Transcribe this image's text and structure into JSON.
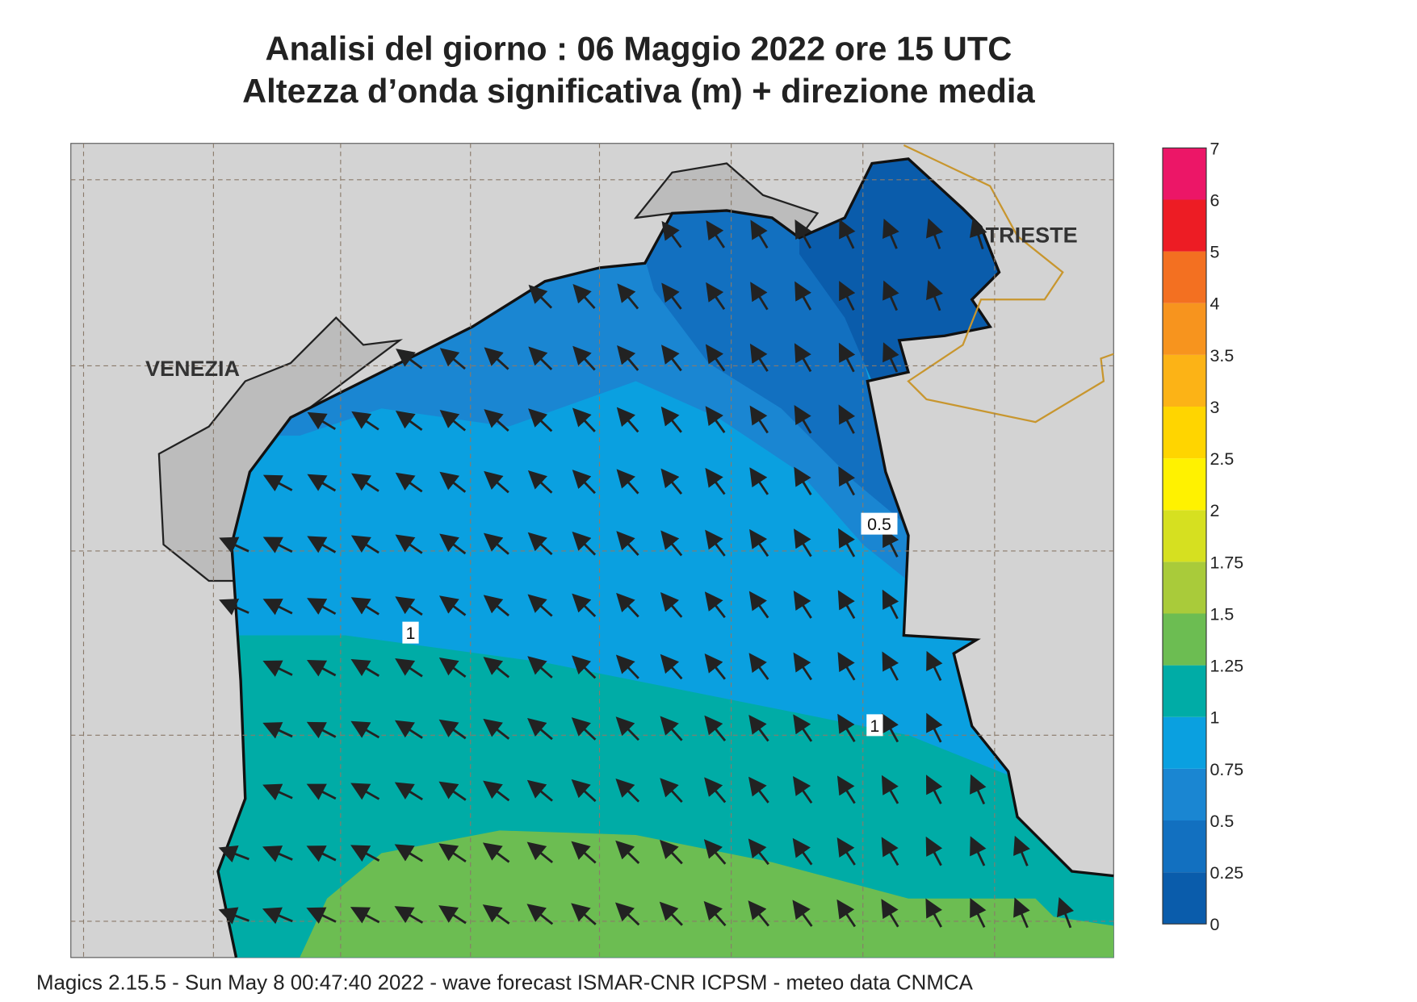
{
  "title": {
    "line1": "Analisi del giorno :  06   Maggio  2022   ore 15 UTC",
    "line2": "Altezza d’onda significativa (m) + direzione media"
  },
  "places": [
    "VENEZIA",
    "TRIESTE"
  ],
  "contour_labels": [
    "0.5",
    "1",
    "1"
  ],
  "colorbar": {
    "levels": [
      0,
      0.25,
      0.5,
      0.75,
      1,
      1.25,
      1.5,
      1.75,
      2,
      2.5,
      3,
      3.5,
      4,
      5,
      6,
      7
    ],
    "colors": [
      "#0a5cab",
      "#1270c0",
      "#1a86d2",
      "#0aa0e0",
      "#00aca6",
      "#6cbd52",
      "#a9cb3a",
      "#d6e020",
      "#fff200",
      "#ffd500",
      "#fcb316",
      "#f7941e",
      "#f37021",
      "#ed1c24",
      "#ec1667"
    ]
  },
  "footer": "Magics 2.15.5 - Sun May  8 00:47:40 2022 - wave forecast  ISMAR-CNR  ICPSM - meteo data   CNMCA"
}
